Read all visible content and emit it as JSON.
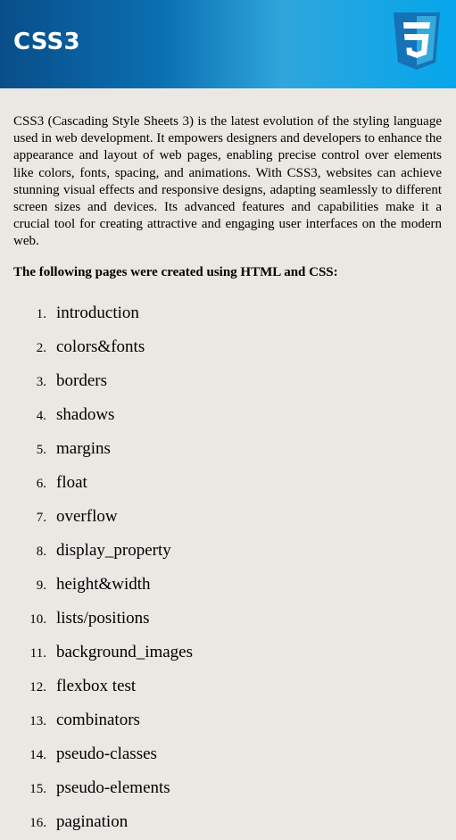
{
  "header": {
    "title": "CSS3",
    "logo_icon": "css3-shield-icon",
    "colors": {
      "gradient_start": "#094e8a",
      "gradient_mid": "#2fa6dc",
      "gradient_end": "#05a6ec",
      "logo_blue": "#1572b6"
    }
  },
  "main": {
    "intro": "CSS3 (Cascading Style Sheets 3) is the latest evolution of the styling language used in web development. It empowers designers and developers to enhance the appearance and layout of web pages, enabling precise control over elements like colors, fonts, spacing, and animations. With CSS3, websites can achieve stunning visual effects and responsive designs, adapting seamlessly to different screen sizes and devices. Its advanced features and capabilities make it a crucial tool for creating attractive and engaging user interfaces on the modern web.",
    "pages_heading": "The following pages were created using HTML and CSS:",
    "pages": [
      {
        "num": "1.",
        "label": "introduction"
      },
      {
        "num": "2.",
        "label": "colors&fonts"
      },
      {
        "num": "3.",
        "label": "borders"
      },
      {
        "num": "4.",
        "label": "shadows"
      },
      {
        "num": "5.",
        "label": "margins"
      },
      {
        "num": "6.",
        "label": "float"
      },
      {
        "num": "7.",
        "label": "overflow"
      },
      {
        "num": "8.",
        "label": "display_property"
      },
      {
        "num": "9.",
        "label": "height&width"
      },
      {
        "num": "10.",
        "label": "lists/positions"
      },
      {
        "num": "11.",
        "label": "background_images"
      },
      {
        "num": "12.",
        "label": "flexbox test"
      },
      {
        "num": "13.",
        "label": "combinators"
      },
      {
        "num": "14.",
        "label": "pseudo-classes"
      },
      {
        "num": "15.",
        "label": "pseudo-elements"
      },
      {
        "num": "16.",
        "label": "pagination"
      }
    ]
  }
}
